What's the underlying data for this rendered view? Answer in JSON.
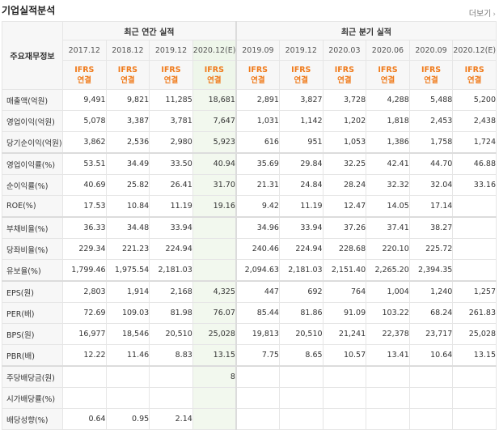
{
  "section_title": "기업실적분석",
  "more_label": "더보기",
  "header": {
    "label_head": "주요재무정보",
    "annual_group": "최근 연간 실적",
    "quarter_group": "최근 분기 실적",
    "annual_periods": [
      "2017.12",
      "2018.12",
      "2019.12",
      "2020.12(E)"
    ],
    "quarter_periods": [
      "2019.09",
      "2019.12",
      "2020.03",
      "2020.06",
      "2020.09",
      "2020.12(E)"
    ],
    "ifrs_line1": "IFRS",
    "ifrs_line2": "연결"
  },
  "rows": [
    {
      "label": "매출액(억원)",
      "values": [
        "9,491",
        "9,821",
        "11,285",
        "18,681",
        "2,891",
        "3,827",
        "3,728",
        "4,288",
        "5,488",
        "5,200"
      ]
    },
    {
      "label": "영업이익(억원)",
      "values": [
        "5,078",
        "3,387",
        "3,781",
        "7,647",
        "1,031",
        "1,142",
        "1,202",
        "1,818",
        "2,453",
        "2,438"
      ]
    },
    {
      "label": "당기순이익(억원)",
      "values": [
        "3,862",
        "2,536",
        "2,980",
        "5,923",
        "616",
        "951",
        "1,053",
        "1,386",
        "1,758",
        "1,724"
      ]
    },
    {
      "label": "영업이익률(%)",
      "values": [
        "53.51",
        "34.49",
        "33.50",
        "40.94",
        "35.69",
        "29.84",
        "32.25",
        "42.41",
        "44.70",
        "46.88"
      ]
    },
    {
      "label": "순이익률(%)",
      "values": [
        "40.69",
        "25.82",
        "26.41",
        "31.70",
        "21.31",
        "24.84",
        "28.24",
        "32.32",
        "32.04",
        "33.16"
      ]
    },
    {
      "label": "ROE(%)",
      "values": [
        "17.53",
        "10.84",
        "11.19",
        "19.16",
        "9.42",
        "11.19",
        "12.47",
        "14.05",
        "17.14",
        ""
      ]
    },
    {
      "label": "부채비율(%)",
      "values": [
        "36.33",
        "34.48",
        "33.94",
        "",
        "34.96",
        "33.94",
        "37.26",
        "37.41",
        "38.27",
        ""
      ]
    },
    {
      "label": "당좌비율(%)",
      "values": [
        "229.34",
        "221.23",
        "224.94",
        "",
        "240.46",
        "224.94",
        "228.68",
        "220.10",
        "225.72",
        ""
      ]
    },
    {
      "label": "유보율(%)",
      "values": [
        "1,799.46",
        "1,975.54",
        "2,181.03",
        "",
        "2,094.63",
        "2,181.03",
        "2,151.40",
        "2,265.20",
        "2,394.35",
        ""
      ]
    },
    {
      "label": "EPS(원)",
      "values": [
        "2,803",
        "1,914",
        "2,168",
        "4,325",
        "447",
        "692",
        "764",
        "1,004",
        "1,240",
        "1,257"
      ]
    },
    {
      "label": "PER(배)",
      "values": [
        "72.69",
        "109.03",
        "81.98",
        "76.07",
        "85.44",
        "81.86",
        "91.09",
        "103.22",
        "68.24",
        "261.83"
      ]
    },
    {
      "label": "BPS(원)",
      "values": [
        "16,977",
        "18,546",
        "20,510",
        "25,028",
        "19,813",
        "20,510",
        "21,241",
        "22,378",
        "23,717",
        "25,028"
      ]
    },
    {
      "label": "PBR(배)",
      "values": [
        "12.22",
        "11.46",
        "8.83",
        "13.15",
        "7.75",
        "8.65",
        "10.57",
        "13.41",
        "10.64",
        "13.15"
      ]
    },
    {
      "label": "주당배당금(원)",
      "values": [
        "",
        "",
        "",
        "8",
        "",
        "",
        "",
        "",
        "",
        ""
      ]
    },
    {
      "label": "시가배당률(%)",
      "values": [
        "",
        "",
        "",
        "",
        "",
        "",
        "",
        "",
        "",
        ""
      ]
    },
    {
      "label": "배당성향(%)",
      "values": [
        "0.64",
        "0.95",
        "2.14",
        "",
        "",
        "",
        "",
        "",
        "",
        ""
      ]
    }
  ],
  "colors": {
    "ifrs": "#f07a1a",
    "estimate_bg": "#f2f8ee",
    "header_bg": "#f7f7f7",
    "border": "#e6e6e6"
  }
}
